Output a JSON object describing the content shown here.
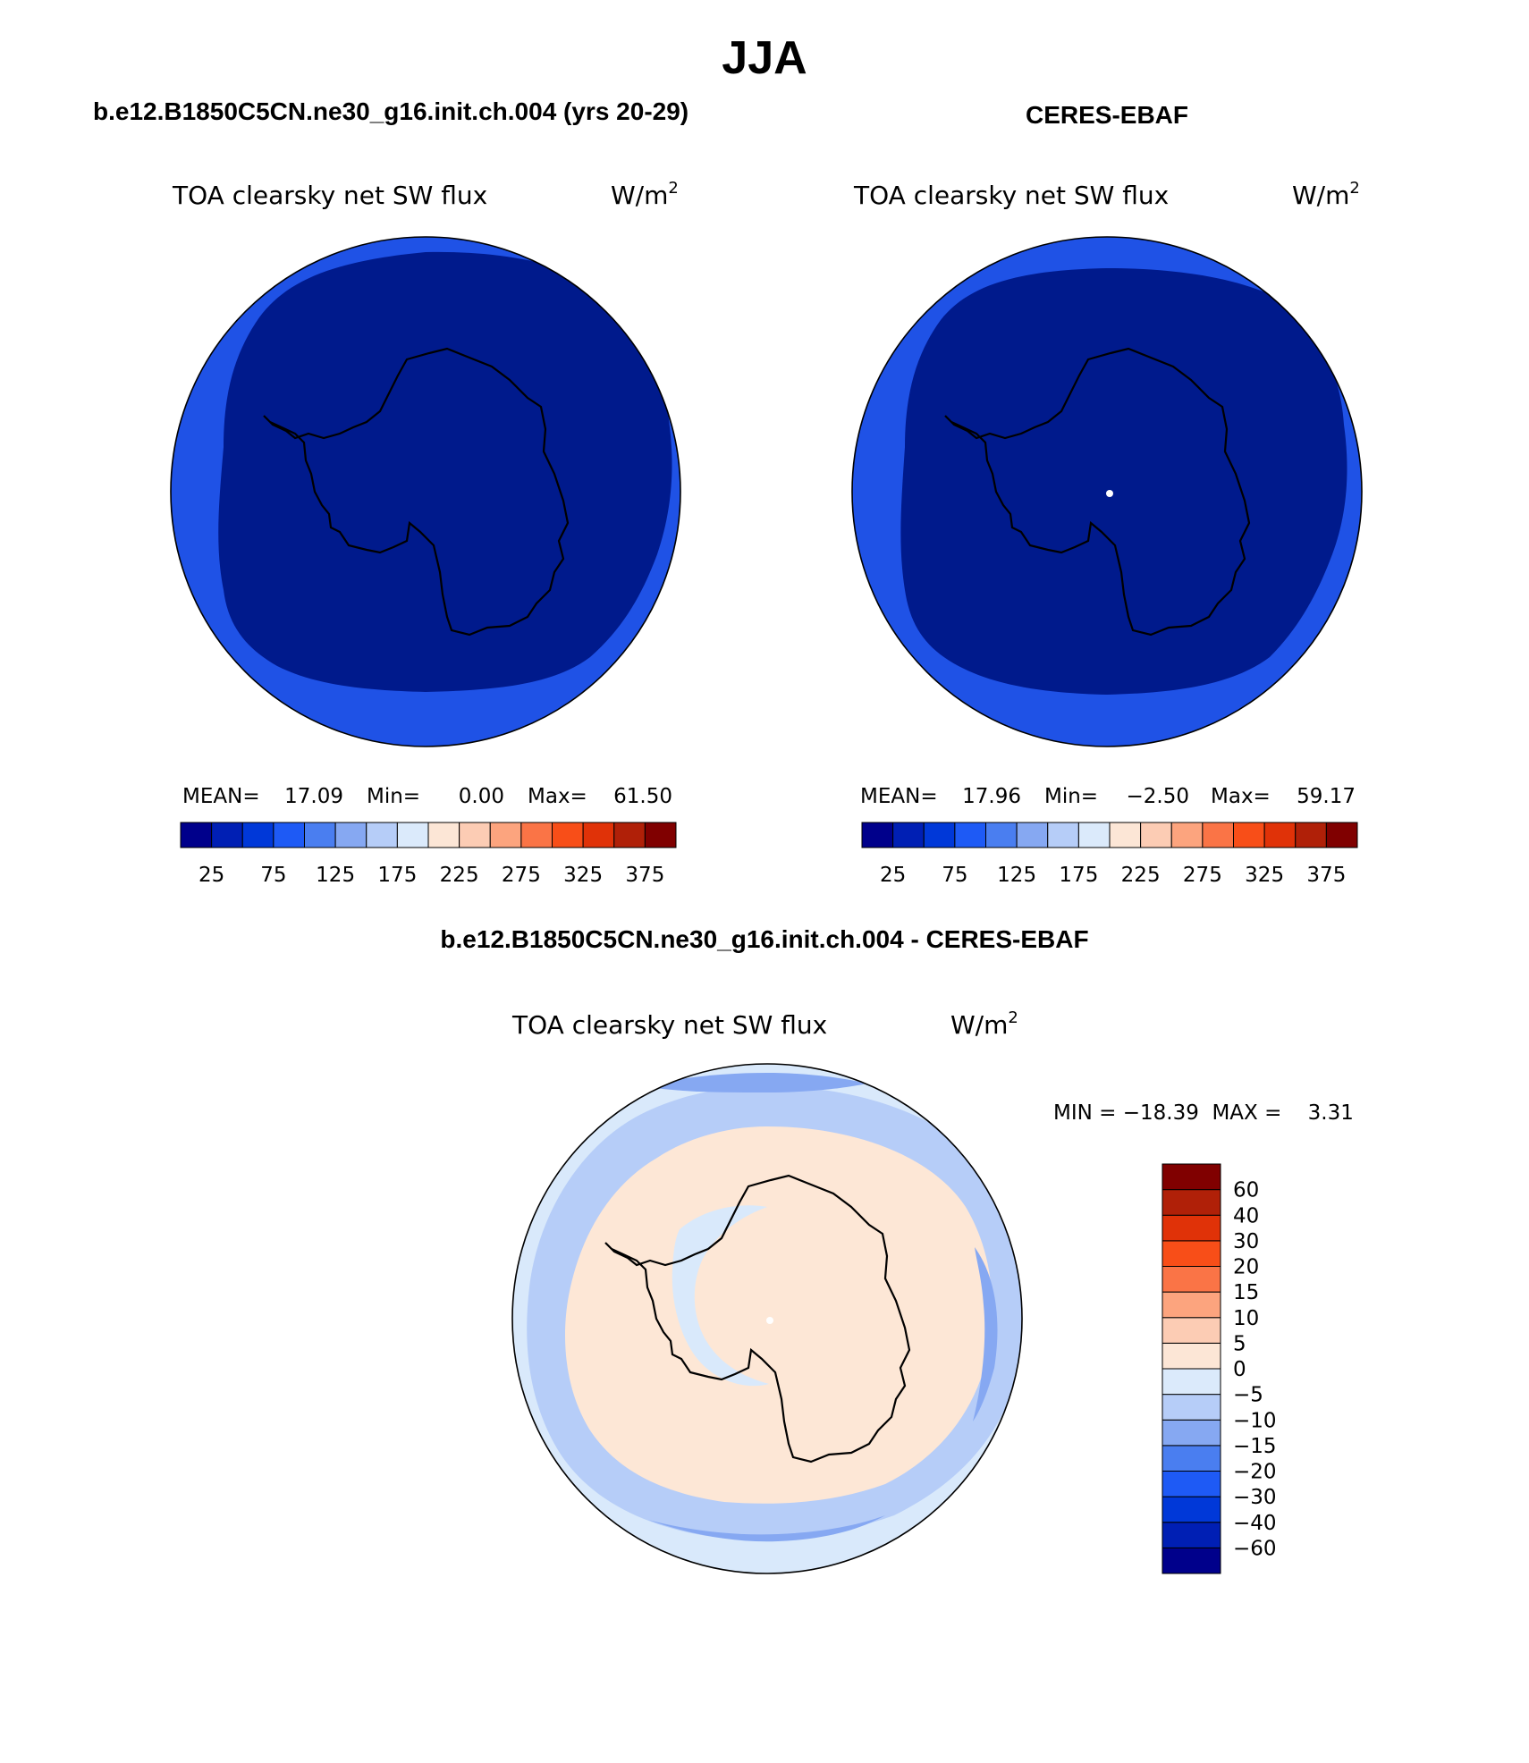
{
  "figure": {
    "season": "JJA",
    "top_left_title": "b.e12.B1850C5CN.ne30_g16.init.ch.004 (yrs 20-29)",
    "top_right_title": "CERES-EBAF",
    "bottom_title": "b.e12.B1850C5CN.ne30_g16.init.ch.004 - CERES-EBAF"
  },
  "panels": {
    "model": {
      "variable": "TOA clearsky net SW flux",
      "units": "W/m",
      "units_exp": "2",
      "stats": {
        "mean_label": "MEAN=",
        "mean": "17.09",
        "min_label": "Min=",
        "min": "0.00",
        "max_label": "Max=",
        "max": "61.50"
      }
    },
    "obs": {
      "variable": "TOA clearsky net SW flux",
      "units": "W/m",
      "units_exp": "2",
      "stats": {
        "mean_label": "MEAN=",
        "mean": "17.96",
        "min_label": "Min=",
        "min": "−2.50",
        "max_label": "Max=",
        "max": "59.17"
      }
    },
    "diff": {
      "variable": "TOA clearsky net SW flux",
      "units": "W/m",
      "units_exp": "2",
      "minmax": "MIN = −18.39  MAX =    3.31"
    }
  },
  "colorbars": {
    "abs": {
      "colors": [
        "#00008b",
        "#001fb4",
        "#0038d8",
        "#1e5af5",
        "#4a7ef0",
        "#86a8f2",
        "#b6cdf8",
        "#dbeafb",
        "#fce6d6",
        "#fcccb4",
        "#fca47e",
        "#fa7446",
        "#f84e18",
        "#e03208",
        "#b02008",
        "#800000"
      ],
      "labels": [
        "25",
        "75",
        "125",
        "175",
        "225",
        "275",
        "325",
        "375"
      ]
    },
    "diff": {
      "colors": [
        "#00008b",
        "#001fb4",
        "#0038d8",
        "#1e5af5",
        "#4a7ef0",
        "#86a8f2",
        "#b6cdf8",
        "#dbeafb",
        "#fce6d6",
        "#fcccb4",
        "#fca47e",
        "#fa7446",
        "#f84e18",
        "#e03208",
        "#b02008",
        "#800000"
      ],
      "labels": [
        "−60",
        "−40",
        "−30",
        "−20",
        "−15",
        "−10",
        "−5",
        "0",
        "5",
        "10",
        "15",
        "20",
        "30",
        "40",
        "60"
      ]
    }
  },
  "map_fields": {
    "abs_outer_ring": "#1f52e6",
    "abs_interior": "#001a8c",
    "diff_background": "#fde7d6",
    "diff_light_blue": "#d9e9fb",
    "diff_mid_blue": "#b6cdf8",
    "diff_blue": "#86a8f2",
    "pole_marker": "#ffffff"
  }
}
